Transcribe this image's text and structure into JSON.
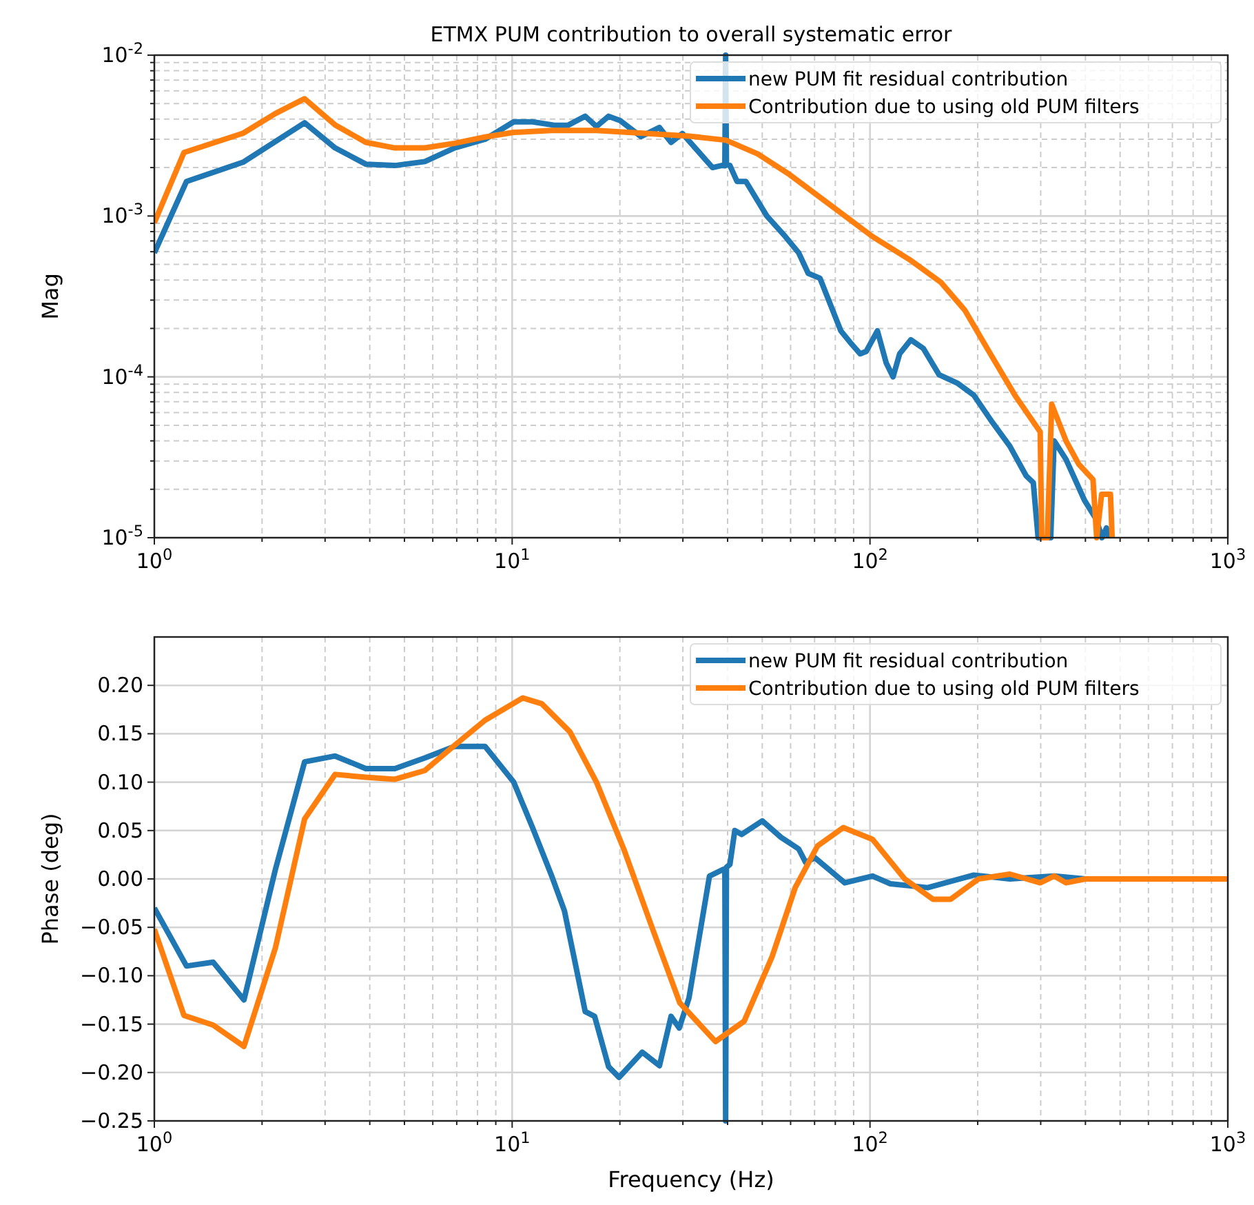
{
  "chart_data": [
    {
      "type": "line",
      "title": "ETMX PUM contribution to overall systematic error",
      "ylabel": "Mag",
      "log": "xy",
      "grid": true,
      "legend": "top right",
      "xlim": [
        1,
        1000
      ],
      "xticks": [
        {
          "value": 1,
          "label": "10$^{0}$"
        },
        {
          "value": 10,
          "label": "10$^{1}$"
        },
        {
          "value": 100,
          "label": "10$^{2}$"
        },
        {
          "value": 1000,
          "label": "10$^{3}$"
        }
      ],
      "ylim": [
        1e-05,
        0.01
      ],
      "yticks": [
        {
          "value": 1e-05,
          "label": "10$^{-5}$"
        },
        {
          "value": 0.0001,
          "label": "10$^{-4}$"
        },
        {
          "value": 0.001,
          "label": "10$^{-3}$"
        },
        {
          "value": 0.01,
          "label": "10$^{-2}$"
        }
      ],
      "series": [
        {
          "name": "new PUM fit residual contribution",
          "color": "#1f77b4",
          "x": [
            1,
            1.23,
            1.77,
            2.63,
            3.2,
            3.9,
            4.7,
            5.7,
            6.9,
            8.4,
            10.1,
            11.4,
            13.2,
            14.3,
            16,
            17.2,
            18.6,
            20,
            22.9,
            25.8,
            27.8,
            29.9,
            36.3,
            38.5,
            39.3,
            39.5,
            39.7,
            40.6,
            42.5,
            45,
            51.5,
            58,
            63.2,
            67.2,
            72.5,
            82.9,
            88,
            93.9,
            97.6,
            104.9,
            111,
            116,
            121,
            130,
            141,
            156,
            176,
            195,
            220,
            246,
            273,
            286,
            295,
            300,
            320,
            327,
            353,
            398,
            429,
            445,
            458,
            465
          ],
          "values": [
            0.00059,
            0.00164,
            0.00216,
            0.0038,
            0.00265,
            0.0021,
            0.00206,
            0.00218,
            0.00265,
            0.003,
            0.00385,
            0.00385,
            0.00366,
            0.00366,
            0.00417,
            0.0036,
            0.00417,
            0.00393,
            0.00312,
            0.00355,
            0.00287,
            0.00326,
            0.002,
            0.00206,
            0.00205,
            0.01,
            0.0021,
            0.00206,
            0.00164,
            0.00164,
            0.001,
            0.000745,
            0.00059,
            0.00044,
            0.00041,
            0.000193,
            0.000164,
            0.000139,
            0.000144,
            0.000193,
            0.000122,
            0.0001,
            0.000139,
            0.00017,
            0.00015,
            0.000103,
            9.1e-05,
            7.7e-05,
            5.2e-05,
            3.7e-05,
            2.43e-05,
            2.2e-05,
            1e-05,
            1e-05,
            1e-05,
            4e-05,
            3.07e-05,
            1.7e-05,
            1.3e-05,
            1e-05,
            1.15e-05,
            1e-05
          ]
        },
        {
          "name": "Contribution due to using old PUM filters",
          "color": "#ff7f0e",
          "x": [
            1,
            1.21,
            1.77,
            2.18,
            2.63,
            3.2,
            3.9,
            4.7,
            5.7,
            6.9,
            8.4,
            10.1,
            12.9,
            17.2,
            23.2,
            31.2,
            39.6,
            48.6,
            59.6,
            75.6,
            101.6,
            129,
            158,
            184,
            213,
            254,
            299,
            302,
            313,
            322,
            353,
            383,
            420,
            430,
            444,
            470,
            475
          ],
          "values": [
            0.00091,
            0.00248,
            0.00327,
            0.00434,
            0.00536,
            0.00368,
            0.00287,
            0.00265,
            0.00265,
            0.00283,
            0.0031,
            0.00331,
            0.0034,
            0.0034,
            0.00327,
            0.00314,
            0.00296,
            0.00243,
            0.00181,
            0.00122,
            0.000745,
            0.000536,
            0.000386,
            0.00026,
            0.000149,
            7.7e-05,
            4.55e-05,
            1e-05,
            1e-05,
            6.76e-05,
            4e-05,
            2.87e-05,
            2.3e-05,
            1e-05,
            1.86e-05,
            1.86e-05,
            1e-05
          ]
        }
      ]
    },
    {
      "type": "line",
      "xlabel": "Frequency (Hz)",
      "ylabel": "Phase (deg)",
      "log": "x",
      "grid": true,
      "legend": "top right",
      "xlim": [
        1,
        1000
      ],
      "xticks": [
        {
          "value": 1,
          "label": "10$^{0}$"
        },
        {
          "value": 10,
          "label": "10$^{1}$"
        },
        {
          "value": 100,
          "label": "10$^{2}$"
        },
        {
          "value": 1000,
          "label": "10$^{3}$"
        }
      ],
      "ylim": [
        -0.25,
        0.25
      ],
      "yticks": [
        {
          "value": -0.25,
          "label": "−0.25"
        },
        {
          "value": -0.2,
          "label": "−0.20"
        },
        {
          "value": -0.15,
          "label": "−0.15"
        },
        {
          "value": -0.1,
          "label": "−0.10"
        },
        {
          "value": -0.05,
          "label": "−0.05"
        },
        {
          "value": 0,
          "label": "0.00"
        },
        {
          "value": 0.05,
          "label": "0.05"
        },
        {
          "value": 0.1,
          "label": "0.10"
        },
        {
          "value": 0.15,
          "label": "0.15"
        },
        {
          "value": 0.2,
          "label": "0.20"
        }
      ],
      "series": [
        {
          "name": "new PUM fit residual contribution",
          "color": "#1f77b4",
          "x": [
            1,
            1.23,
            1.46,
            1.78,
            2.18,
            2.63,
            3.2,
            3.9,
            4.7,
            5.7,
            6.9,
            8.4,
            10.1,
            11.4,
            12.9,
            14,
            16,
            17,
            18.6,
            19.9,
            23.1,
            25.8,
            27.8,
            29.3,
            31.2,
            35.6,
            39,
            39.3,
            39.5,
            39.7,
            40.6,
            41.9,
            43.8,
            50,
            56.4,
            63.2,
            66.1,
            70.1,
            85,
            101.6,
            114,
            145,
            195,
            246,
            327,
            400,
            1000
          ],
          "values": [
            -0.03,
            -0.09,
            -0.086,
            -0.125,
            0.01,
            0.121,
            0.127,
            0.114,
            0.114,
            0.125,
            0.137,
            0.137,
            0.1,
            0.053,
            0.003,
            -0.033,
            -0.137,
            -0.142,
            -0.194,
            -0.205,
            -0.179,
            -0.193,
            -0.142,
            -0.154,
            -0.123,
            0.003,
            0.01,
            0.01,
            -0.25,
            0.012,
            0.015,
            0.05,
            0.046,
            0.06,
            0.043,
            0.031,
            0.017,
            0.022,
            -0.004,
            0.003,
            -0.005,
            -0.009,
            0.004,
            0,
            0.003,
            0,
            0
          ]
        },
        {
          "name": "Contribution due to using old PUM filters",
          "color": "#ff7f0e",
          "x": [
            1,
            1.21,
            1.46,
            1.78,
            2.18,
            2.63,
            3.2,
            3.9,
            4.7,
            5.7,
            6.9,
            8.4,
            10.7,
            12.1,
            14.5,
            17.2,
            20.6,
            24.7,
            29.4,
            37,
            44.5,
            53.3,
            61.8,
            71.3,
            84.2,
            101.6,
            125,
            150,
            168,
            201,
            246,
            299,
            327,
            353,
            400,
            1000
          ],
          "values": [
            -0.052,
            -0.141,
            -0.151,
            -0.173,
            -0.071,
            0.062,
            0.108,
            0.105,
            0.103,
            0.112,
            0.138,
            0.164,
            0.187,
            0.181,
            0.152,
            0.1,
            0.029,
            -0.052,
            -0.128,
            -0.168,
            -0.147,
            -0.08,
            -0.009,
            0.034,
            0.053,
            0.041,
            0,
            -0.021,
            -0.021,
            0,
            0.005,
            -0.004,
            0.003,
            -0.004,
            0,
            0
          ]
        }
      ]
    }
  ]
}
